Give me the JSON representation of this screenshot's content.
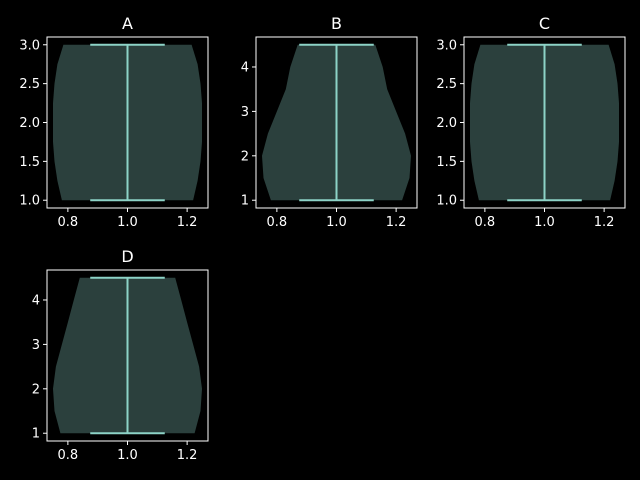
{
  "colors": {
    "background": "#000000",
    "axes": "#ffffff",
    "violin_fill": "#2b403d",
    "violin_lines": "#8dd3c7"
  },
  "chart_data": [
    {
      "type": "violin",
      "title": "A",
      "position": 1.0,
      "xlim": [
        0.73,
        1.27
      ],
      "ylim": [
        0.9,
        3.1
      ],
      "xticks": [
        0.8,
        1.0,
        1.2
      ],
      "xtick_labels": [
        "0.8",
        "1.0",
        "1.2"
      ],
      "yticks": [
        1.0,
        1.5,
        2.0,
        2.5,
        3.0
      ],
      "ytick_labels": [
        "1.0",
        "1.5",
        "2.0",
        "2.5",
        "3.0"
      ],
      "data_min": 1.0,
      "data_max": 3.0,
      "density": [
        {
          "y": 1.0,
          "halfwidth": 0.22
        },
        {
          "y": 1.25,
          "halfwidth": 0.235
        },
        {
          "y": 1.5,
          "halfwidth": 0.245
        },
        {
          "y": 1.75,
          "halfwidth": 0.25
        },
        {
          "y": 2.0,
          "halfwidth": 0.25
        },
        {
          "y": 2.25,
          "halfwidth": 0.25
        },
        {
          "y": 2.5,
          "halfwidth": 0.245
        },
        {
          "y": 2.75,
          "halfwidth": 0.235
        },
        {
          "y": 3.0,
          "halfwidth": 0.215
        }
      ]
    },
    {
      "type": "violin",
      "title": "B",
      "position": 1.0,
      "xlim": [
        0.73,
        1.27
      ],
      "ylim": [
        0.825,
        4.675
      ],
      "xticks": [
        0.8,
        1.0,
        1.2
      ],
      "xtick_labels": [
        "0.8",
        "1.0",
        "1.2"
      ],
      "yticks": [
        1,
        2,
        3,
        4
      ],
      "ytick_labels": [
        "1",
        "2",
        "3",
        "4"
      ],
      "data_min": 1.0,
      "data_max": 4.5,
      "density": [
        {
          "y": 1.0,
          "halfwidth": 0.22
        },
        {
          "y": 1.5,
          "halfwidth": 0.245
        },
        {
          "y": 2.0,
          "halfwidth": 0.25
        },
        {
          "y": 2.5,
          "halfwidth": 0.23
        },
        {
          "y": 3.0,
          "halfwidth": 0.2
        },
        {
          "y": 3.5,
          "halfwidth": 0.17
        },
        {
          "y": 4.0,
          "halfwidth": 0.155
        },
        {
          "y": 4.5,
          "halfwidth": 0.13
        }
      ]
    },
    {
      "type": "violin",
      "title": "C",
      "position": 1.0,
      "xlim": [
        0.73,
        1.27
      ],
      "ylim": [
        0.9,
        3.1
      ],
      "xticks": [
        0.8,
        1.0,
        1.2
      ],
      "xtick_labels": [
        "0.8",
        "1.0",
        "1.2"
      ],
      "yticks": [
        1.0,
        1.5,
        2.0,
        2.5,
        3.0
      ],
      "ytick_labels": [
        "1.0",
        "1.5",
        "2.0",
        "2.5",
        "3.0"
      ],
      "data_min": 1.0,
      "data_max": 3.0,
      "density": [
        {
          "y": 1.0,
          "halfwidth": 0.22
        },
        {
          "y": 1.25,
          "halfwidth": 0.235
        },
        {
          "y": 1.5,
          "halfwidth": 0.245
        },
        {
          "y": 1.75,
          "halfwidth": 0.25
        },
        {
          "y": 2.0,
          "halfwidth": 0.25
        },
        {
          "y": 2.25,
          "halfwidth": 0.25
        },
        {
          "y": 2.5,
          "halfwidth": 0.245
        },
        {
          "y": 2.75,
          "halfwidth": 0.235
        },
        {
          "y": 3.0,
          "halfwidth": 0.215
        }
      ]
    },
    {
      "type": "violin",
      "title": "D",
      "position": 1.0,
      "xlim": [
        0.73,
        1.27
      ],
      "ylim": [
        0.825,
        4.675
      ],
      "xticks": [
        0.8,
        1.0,
        1.2
      ],
      "xtick_labels": [
        "0.8",
        "1.0",
        "1.2"
      ],
      "yticks": [
        1,
        2,
        3,
        4
      ],
      "ytick_labels": [
        "1",
        "2",
        "3",
        "4"
      ],
      "data_min": 1.0,
      "data_max": 4.5,
      "density": [
        {
          "y": 1.0,
          "halfwidth": 0.225
        },
        {
          "y": 1.5,
          "halfwidth": 0.245
        },
        {
          "y": 2.0,
          "halfwidth": 0.25
        },
        {
          "y": 2.5,
          "halfwidth": 0.24
        },
        {
          "y": 3.0,
          "halfwidth": 0.22
        },
        {
          "y": 3.5,
          "halfwidth": 0.2
        },
        {
          "y": 4.0,
          "halfwidth": 0.18
        },
        {
          "y": 4.5,
          "halfwidth": 0.16
        }
      ]
    }
  ]
}
